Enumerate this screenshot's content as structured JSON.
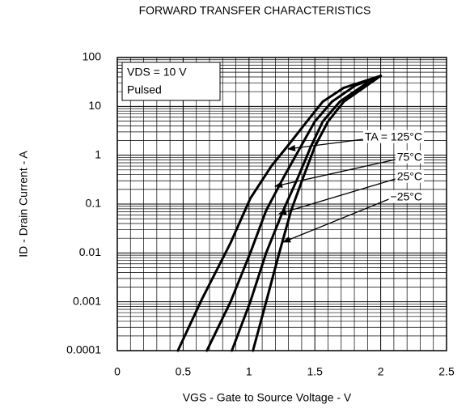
{
  "chart_data": {
    "type": "line",
    "title": "FORWARD TRANSFER CHARACTERISTICS",
    "xlabel": "VGS - Gate to Source Voltage - V",
    "ylabel": "ID - Drain Current - A",
    "annotations": [
      "VDS = 10 V",
      "Pulsed"
    ],
    "xlim": [
      0,
      2.5
    ],
    "xticks": [
      0,
      0.5,
      1,
      1.5,
      2,
      2.5
    ],
    "ylim": [
      0.0001,
      100
    ],
    "yticks": [
      100,
      10,
      1,
      0.1,
      0.01,
      0.001,
      0.0001
    ],
    "ylog": true,
    "grid": true,
    "series": [
      {
        "name": "TA = 125°C",
        "color": "#000000",
        "x": [
          0.46,
          0.64,
          0.86,
          1.01,
          1.17,
          1.29,
          1.44,
          1.56,
          1.72,
          2.0
        ],
        "values": [
          0.0001,
          0.0011,
          0.016,
          0.13,
          0.6,
          1.5,
          4.9,
          12.5,
          24,
          42
        ]
      },
      {
        "name": "75°C",
        "color": "#000000",
        "x": [
          0.68,
          0.86,
          1.01,
          1.13,
          1.26,
          1.38,
          1.5,
          1.63,
          1.81,
          2.0
        ],
        "values": [
          0.0001,
          0.001,
          0.01,
          0.074,
          0.34,
          1.3,
          4.9,
          12.5,
          27,
          42
        ]
      },
      {
        "name": "25°C",
        "color": "#000000",
        "x": [
          0.87,
          1.01,
          1.13,
          1.26,
          1.37,
          1.47,
          1.56,
          1.69,
          1.87,
          2.0
        ],
        "values": [
          0.0001,
          0.001,
          0.01,
          0.074,
          0.34,
          1.5,
          4.9,
          12.5,
          27,
          42
        ]
      },
      {
        "name": "−25°C",
        "color": "#000000",
        "x": [
          1.03,
          1.13,
          1.23,
          1.32,
          1.41,
          1.5,
          1.6,
          1.72,
          1.88,
          2.0
        ],
        "values": [
          0.0001,
          0.001,
          0.01,
          0.074,
          0.34,
          1.5,
          4.9,
          12.5,
          25,
          42
        ]
      }
    ]
  }
}
